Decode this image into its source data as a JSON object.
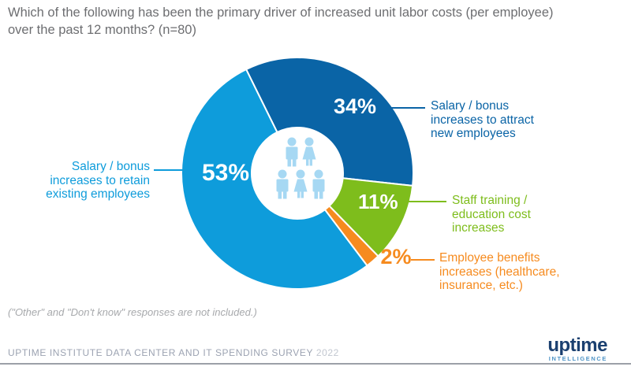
{
  "header": {
    "title_line1": "Which of the following has been the primary driver of increased unit labor costs (per employee)",
    "title_line2": "over the past 12 months? (n=80)"
  },
  "chart_data": {
    "type": "pie",
    "subtype": "donut",
    "title": "Which of the following has been the primary driver of increased unit labor costs (per employee) over the past 12 months? (n=80)",
    "n": 80,
    "start_angle_deg": -26.2,
    "outer_radius_px": 147,
    "inner_radius_px": 58,
    "segments": [
      {
        "label": "Salary / bonus increases to attract new employees",
        "value": 34,
        "pct_label": "34%",
        "color": "#0A64A6"
      },
      {
        "label": "Staff training / education cost increases",
        "value": 11,
        "pct_label": "11%",
        "color": "#7EBD1C"
      },
      {
        "label": "Employee benefits increases (healthcare, insurance, etc.)",
        "value": 2,
        "pct_label": "2%",
        "color": "#F68B1F"
      },
      {
        "label": "Salary / bonus increases to retain existing employees",
        "value": 53,
        "pct_label": "53%",
        "color": "#0E9CDB"
      }
    ],
    "note": "(\"Other\" and \"Don't know\" responses are not included.)"
  },
  "callouts": {
    "attract": {
      "text": "Salary / bonus\nincreases to attract\nnew employees",
      "color": "#0A64A6"
    },
    "retain": {
      "text": "Salary / bonus\nincreases to retain\nexisting employees",
      "color": "#0E9CDB"
    },
    "staff": {
      "text": "Staff training /\neducation cost\nincreases",
      "color": "#7EBD1C"
    },
    "benefits": {
      "text": "Employee benefits\nincreases (healthcare,\ninsurance, etc.)",
      "color": "#F68B1F"
    }
  },
  "footnote": "(\"Other\" and \"Don't know\" responses are not included.)",
  "footer": {
    "survey_text": "UPTIME INSTITUTE DATA CENTER AND IT SPENDING SURVEY",
    "year": "2022",
    "logo_word": "uptime",
    "logo_sub": "INTELLIGENCE"
  },
  "icons": {
    "center_icon": "people-group-icon",
    "center_icon_color": "#A6D8F3"
  }
}
